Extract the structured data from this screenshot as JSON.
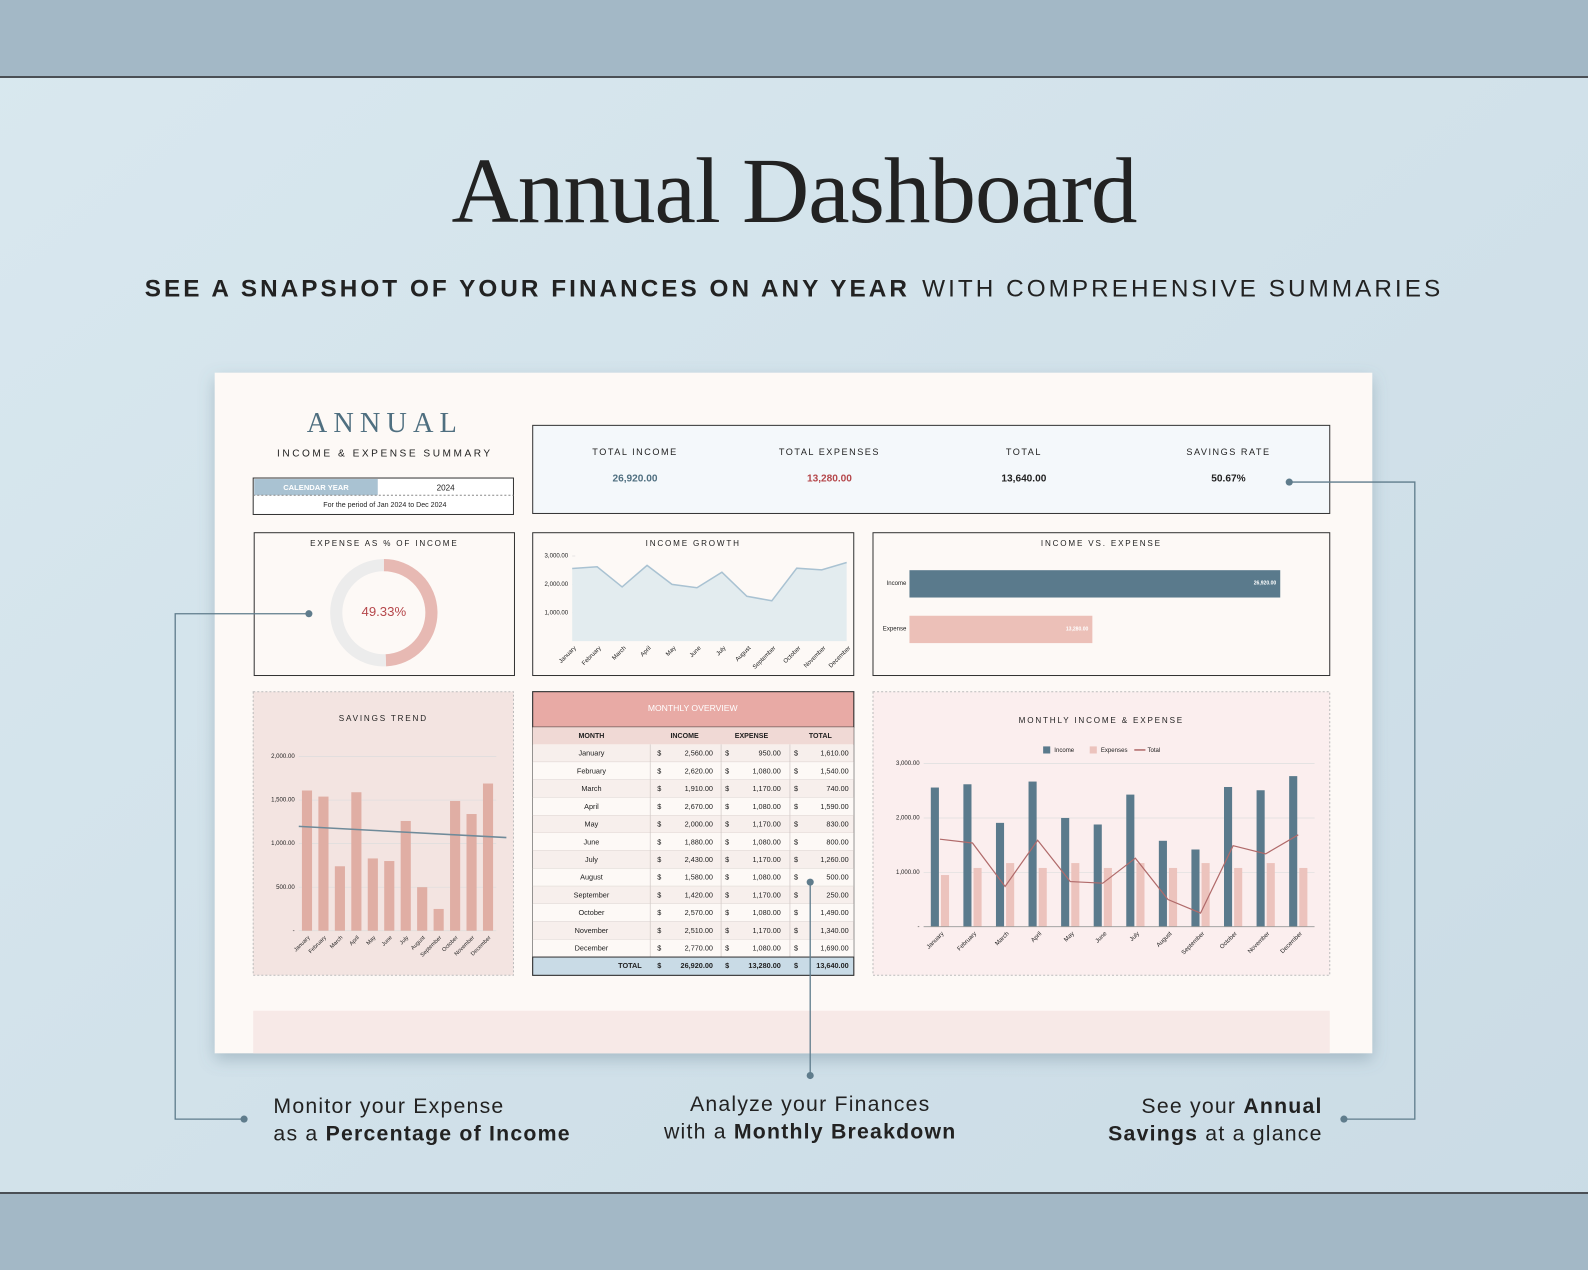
{
  "header": {
    "title": "Annual Dashboard",
    "subtitle_bold": "SEE A SNAPSHOT OF YOUR FINANCES ON ANY YEAR",
    "subtitle_rest": "WITH COMPREHENSIVE SUMMARIES"
  },
  "dashboard": {
    "heading": "ANNUAL",
    "subheading": "INCOME & EXPENSE SUMMARY",
    "calendar_label": "CALENDAR YEAR",
    "year": "2024",
    "period": "For the period of Jan 2024 to Dec 2024",
    "kpis": [
      {
        "label": "TOTAL INCOME",
        "value": "26,920.00",
        "color": "#4f6f80"
      },
      {
        "label": "TOTAL EXPENSES",
        "value": "13,280.00",
        "color": "#b5474b"
      },
      {
        "label": "TOTAL",
        "value": "13,640.00",
        "color": "#222222"
      },
      {
        "label": "SAVINGS RATE",
        "value": "50.67%",
        "color": "#222222"
      }
    ],
    "table": {
      "title": "MONTHLY OVERVIEW",
      "currency": "$",
      "columns": [
        "MONTH",
        "INCOME",
        "EXPENSE",
        "TOTAL"
      ],
      "rows": [
        [
          "January",
          "2,560.00",
          "950.00",
          "1,610.00"
        ],
        [
          "February",
          "2,620.00",
          "1,080.00",
          "1,540.00"
        ],
        [
          "March",
          "1,910.00",
          "1,170.00",
          "740.00"
        ],
        [
          "April",
          "2,670.00",
          "1,080.00",
          "1,590.00"
        ],
        [
          "May",
          "2,000.00",
          "1,170.00",
          "830.00"
        ],
        [
          "June",
          "1,880.00",
          "1,080.00",
          "800.00"
        ],
        [
          "July",
          "2,430.00",
          "1,170.00",
          "1,260.00"
        ],
        [
          "August",
          "1,580.00",
          "1,080.00",
          "500.00"
        ],
        [
          "September",
          "1,420.00",
          "1,170.00",
          "250.00"
        ],
        [
          "October",
          "2,570.00",
          "1,080.00",
          "1,490.00"
        ],
        [
          "November",
          "2,510.00",
          "1,170.00",
          "1,340.00"
        ],
        [
          "December",
          "2,770.00",
          "1,080.00",
          "1,690.00"
        ]
      ],
      "total": [
        "TOTAL",
        "26,920.00",
        "13,280.00",
        "13,640.00"
      ]
    }
  },
  "chart_data": [
    {
      "type": "donut",
      "title": "EXPENSE AS % OF INCOME",
      "values": [
        49.33,
        50.67
      ],
      "colors": [
        "#e7b9b3",
        "#ececec"
      ],
      "center_label": "49.33%"
    },
    {
      "type": "area",
      "title": "INCOME GROWTH",
      "categories": [
        "January",
        "February",
        "March",
        "April",
        "May",
        "June",
        "July",
        "August",
        "September",
        "October",
        "November",
        "December"
      ],
      "values": [
        2560,
        2620,
        1910,
        2670,
        2000,
        1880,
        2430,
        1580,
        1420,
        2570,
        2510,
        2770
      ],
      "color": "#a9c2d2",
      "ylim": [
        0,
        3000
      ],
      "yticks": [
        {
          "value": 1000,
          "label": "1,000.00"
        },
        {
          "value": 2000,
          "label": "2,000.00"
        },
        {
          "value": 3000,
          "label": "3,000.00"
        }
      ]
    },
    {
      "type": "hbar",
      "title": "INCOME VS. EXPENSE",
      "categories": [
        "Income",
        "Expense"
      ],
      "values": [
        26920,
        13280
      ],
      "value_labels": [
        "26,920.00",
        "13,280.00"
      ],
      "colors": [
        "#5a7a8c",
        "#ecc0b8"
      ],
      "xlim": [
        0,
        30000
      ]
    },
    {
      "type": "bar",
      "title": "SAVINGS TREND",
      "categories": [
        "January",
        "February",
        "March",
        "April",
        "May",
        "June",
        "July",
        "August",
        "September",
        "October",
        "November",
        "December"
      ],
      "values": [
        1610,
        1540,
        740,
        1590,
        830,
        800,
        1260,
        500,
        250,
        1490,
        1340,
        1690
      ],
      "color": "#e0aea4",
      "trendline": true,
      "trend_color": "#6f8a99",
      "ylim": [
        0,
        2000
      ],
      "yticks": [
        {
          "value": 0,
          "label": "-"
        },
        {
          "value": 500,
          "label": "500.00"
        },
        {
          "value": 1000,
          "label": "1,000.00"
        },
        {
          "value": 1500,
          "label": "1,500.00"
        },
        {
          "value": 2000,
          "label": "2,000.00"
        }
      ]
    },
    {
      "type": "combo",
      "title": "MONTHLY INCOME & EXPENSE",
      "categories": [
        "January",
        "February",
        "March",
        "April",
        "May",
        "June",
        "July",
        "August",
        "September",
        "October",
        "November",
        "December"
      ],
      "series": [
        {
          "name": "Income",
          "color": "#5a7a8c",
          "kind": "bar",
          "values": [
            2560,
            2620,
            1910,
            2670,
            2000,
            1880,
            2430,
            1580,
            1420,
            2570,
            2510,
            2770
          ]
        },
        {
          "name": "Expenses",
          "color": "#ecc3bd",
          "kind": "bar",
          "values": [
            950,
            1080,
            1170,
            1080,
            1170,
            1080,
            1170,
            1080,
            1170,
            1080,
            1170,
            1080
          ]
        },
        {
          "name": "Total",
          "color": "#b06a6a",
          "kind": "line",
          "values": [
            1610,
            1540,
            740,
            1590,
            830,
            800,
            1260,
            500,
            250,
            1490,
            1340,
            1690
          ]
        }
      ],
      "ylim": [
        0,
        3000
      ],
      "yticks": [
        {
          "value": 0,
          "label": "-"
        },
        {
          "value": 1000,
          "label": "1,000.00"
        },
        {
          "value": 2000,
          "label": "2,000.00"
        },
        {
          "value": 3000,
          "label": "3,000.00"
        }
      ]
    }
  ],
  "callouts": [
    {
      "lines": [
        [
          {
            "text": "Monitor your Expense",
            "bold": false
          }
        ],
        [
          {
            "text": "as a ",
            "bold": false
          },
          {
            "text": "Percentage of Income",
            "bold": true
          }
        ]
      ]
    },
    {
      "lines": [
        [
          {
            "text": "Analyze your Finances",
            "bold": false
          }
        ],
        [
          {
            "text": "with a ",
            "bold": false
          },
          {
            "text": "Monthly Breakdown",
            "bold": true
          }
        ]
      ]
    },
    {
      "lines": [
        [
          {
            "text": "See your ",
            "bold": false
          },
          {
            "text": "Annual",
            "bold": true
          }
        ],
        [
          {
            "text": "Savings",
            "bold": true
          },
          {
            "text": " at a glance",
            "bold": false
          }
        ]
      ]
    }
  ]
}
